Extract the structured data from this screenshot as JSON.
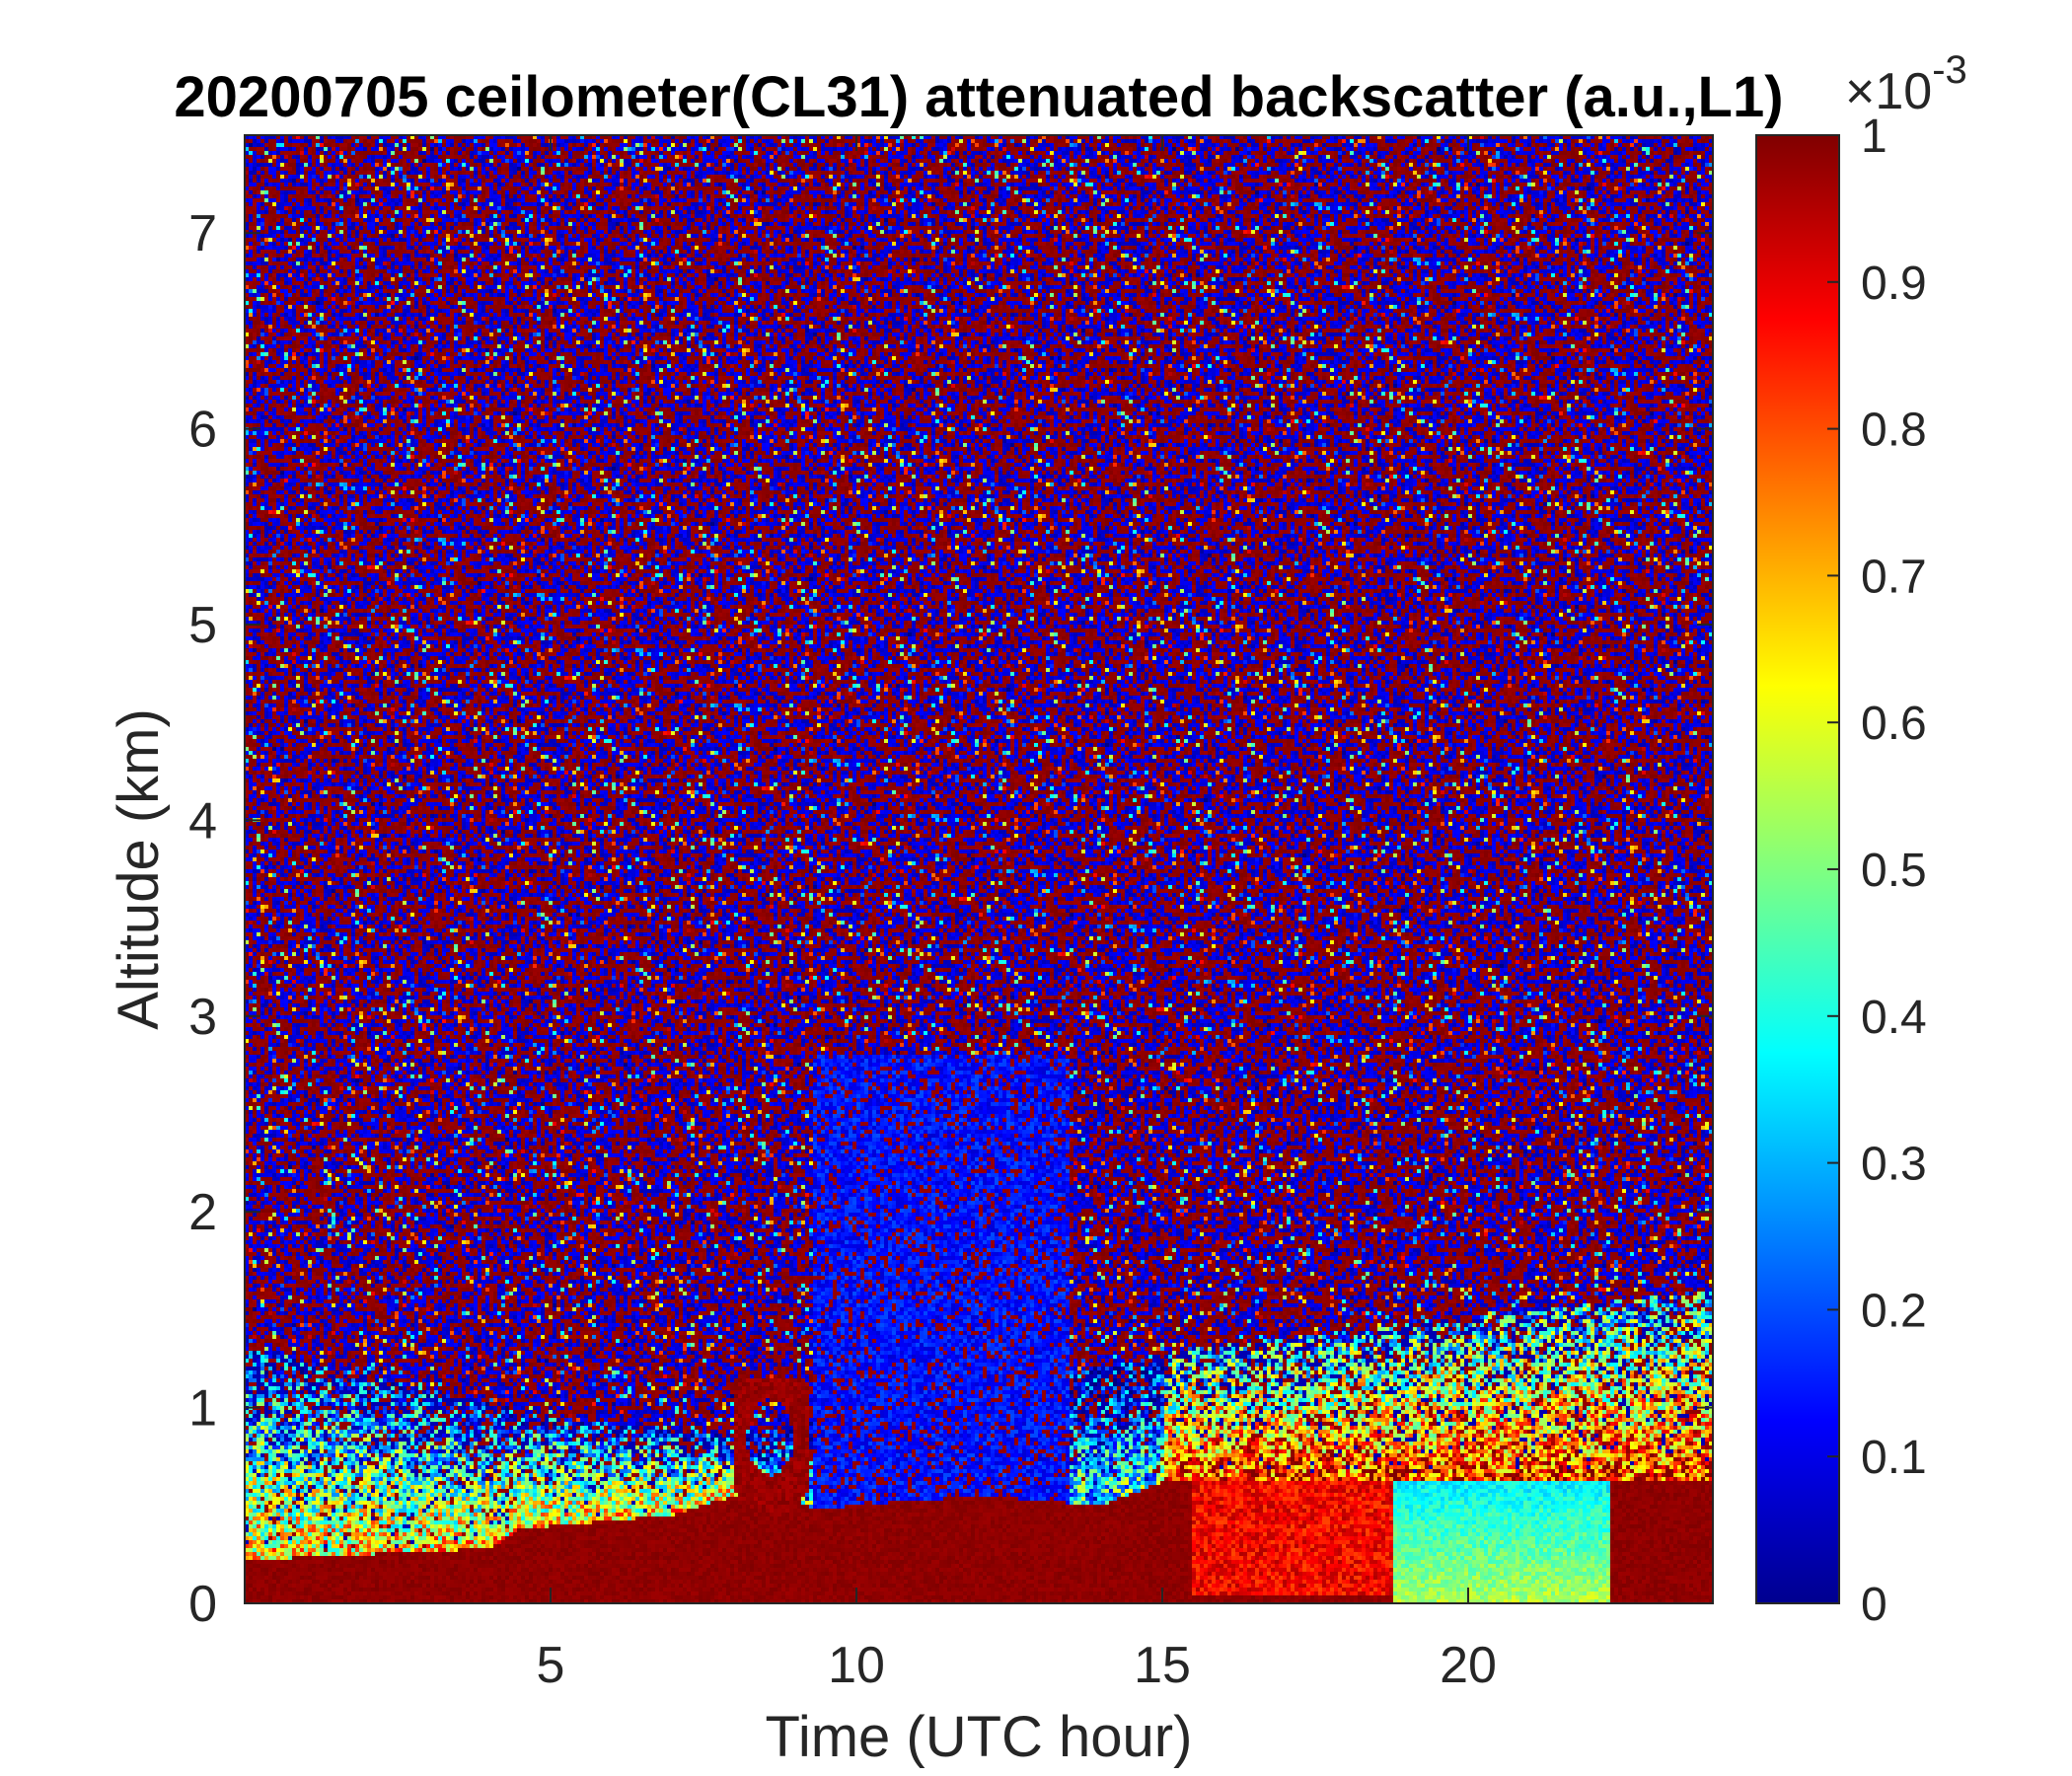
{
  "chart_data": {
    "type": "heatmap",
    "title": "20200705 ceilometer(CL31) attenuated backscatter (a.u.,L1)",
    "xlabel": "Time (UTC hour)",
    "ylabel": "Altitude (km)",
    "xlim": [
      0,
      24
    ],
    "ylim": [
      0,
      7.5
    ],
    "xticks": [
      5,
      10,
      15,
      20
    ],
    "yticks": [
      0,
      1,
      2,
      3,
      4,
      5,
      6,
      7
    ],
    "colorbar": {
      "range": [
        0,
        1
      ],
      "multiplier": "×10",
      "exponent": "-3",
      "ticks": [
        0,
        0.1,
        0.2,
        0.3,
        0.4,
        0.5,
        0.6,
        0.7,
        0.8,
        0.9,
        1
      ],
      "colormap": "jet"
    },
    "grid": false,
    "features": {
      "surface_layer_top_km": [
        [
          0,
          0.22
        ],
        [
          4,
          0.28
        ],
        [
          4.5,
          0.38
        ],
        [
          7,
          0.45
        ],
        [
          8.5,
          0.6
        ],
        [
          9.3,
          0.48
        ],
        [
          12,
          0.55
        ],
        [
          14,
          0.5
        ],
        [
          15,
          0.62
        ],
        [
          24,
          0.62
        ]
      ],
      "aerosol_layer_top_km": [
        [
          0,
          1.3
        ],
        [
          5,
          0.95
        ],
        [
          8,
          0.85
        ],
        [
          15.5,
          1.3
        ],
        [
          24,
          1.6
        ]
      ],
      "clear_column_hours": [
        9.3,
        13.5
      ],
      "nocturnal_low_signal_hours": [
        18.8,
        22.3
      ],
      "elevated_plume_hours": [
        8.0,
        9.2
      ]
    }
  }
}
